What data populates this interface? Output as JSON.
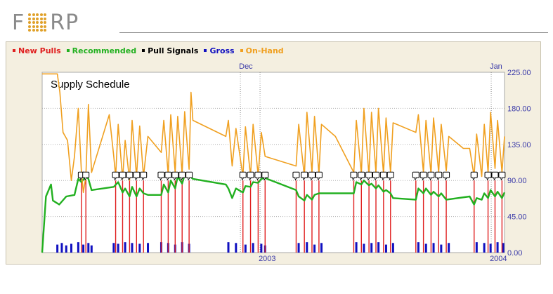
{
  "brand": {
    "logo_prefix": "F",
    "logo_suffix": "RP",
    "logo_dot_color": "#e0a12a"
  },
  "legend": [
    {
      "label": "New Pulls",
      "color": "#e02020"
    },
    {
      "label": "Recommended",
      "color": "#22b020"
    },
    {
      "label": "Pull Signals",
      "color": "#000000"
    },
    {
      "label": "Gross",
      "color": "#1010c0"
    },
    {
      "label": "On-Hand",
      "color": "#f0a020"
    }
  ],
  "chart_data": {
    "type": "line",
    "title": "Supply Schedule",
    "ylim": [
      0,
      225
    ],
    "yticks": [
      "0.00",
      "45.00",
      "90.00",
      "135.00",
      "180.00",
      "225.00"
    ],
    "top_axis_labels": [
      {
        "label": "Dec",
        "date": "2002-12-01"
      },
      {
        "label": "Jan",
        "date": "2004-01-01"
      }
    ],
    "bottom_axis_labels": [
      {
        "label": "2003",
        "date": "2003-01-01"
      },
      {
        "label": "2004",
        "date": "2004-01-01"
      }
    ],
    "xlim": [
      "2002-01-22",
      "2004-01-22"
    ],
    "grid": true,
    "legend_position": "top-left",
    "colors": {
      "on_hand": "#f0a020",
      "recommended": "#22b020",
      "new_pulls": "#e02020",
      "gross": "#1010c0",
      "pull_signals": "#000000"
    },
    "pull_signal_dates": [
      "2002-03-25",
      "2002-04-01",
      "2002-05-18",
      "2002-05-29",
      "2002-06-09",
      "2002-06-20",
      "2002-07-01",
      "2002-07-29",
      "2002-08-09",
      "2002-08-20",
      "2002-08-31",
      "2002-09-11",
      "2002-12-05",
      "2002-12-17",
      "2002-12-29",
      "2003-01-09",
      "2003-02-27",
      "2003-03-12",
      "2003-03-24",
      "2003-04-04",
      "2003-05-29",
      "2003-06-10",
      "2003-06-22",
      "2003-07-03",
      "2003-07-15",
      "2003-07-26",
      "2003-09-04",
      "2003-09-16",
      "2003-09-28",
      "2003-10-10",
      "2003-10-22",
      "2003-12-05",
      "2003-12-27",
      "2004-01-07",
      "2004-01-18"
    ],
    "series": [
      {
        "name": "On-Hand",
        "points": [
          [
            "2002-01-22",
            223
          ],
          [
            "2002-02-15",
            223
          ],
          [
            "2002-02-19",
            200
          ],
          [
            "2002-02-24",
            150
          ],
          [
            "2002-03-03",
            140
          ],
          [
            "2002-03-09",
            90
          ],
          [
            "2002-03-14",
            120
          ],
          [
            "2002-03-20",
            180
          ],
          [
            "2002-03-25",
            100
          ],
          [
            "2002-03-28",
            75
          ],
          [
            "2002-04-01",
            95
          ],
          [
            "2002-04-05",
            185
          ],
          [
            "2002-04-10",
            100
          ],
          [
            "2002-05-08",
            172
          ],
          [
            "2002-05-15",
            120
          ],
          [
            "2002-05-18",
            95
          ],
          [
            "2002-05-22",
            160
          ],
          [
            "2002-05-29",
            92
          ],
          [
            "2002-06-02",
            140
          ],
          [
            "2002-06-09",
            90
          ],
          [
            "2002-06-13",
            165
          ],
          [
            "2002-06-20",
            95
          ],
          [
            "2002-06-25",
            158
          ],
          [
            "2002-07-01",
            95
          ],
          [
            "2002-07-08",
            145
          ],
          [
            "2002-07-29",
            125
          ],
          [
            "2002-08-02",
            165
          ],
          [
            "2002-08-09",
            97
          ],
          [
            "2002-08-13",
            172
          ],
          [
            "2002-08-20",
            100
          ],
          [
            "2002-08-24",
            170
          ],
          [
            "2002-08-31",
            98
          ],
          [
            "2002-09-04",
            176
          ],
          [
            "2002-09-11",
            104
          ],
          [
            "2002-09-14",
            200
          ],
          [
            "2002-09-17",
            165
          ],
          [
            "2002-11-08",
            145
          ],
          [
            "2002-11-12",
            165
          ],
          [
            "2002-11-18",
            108
          ],
          [
            "2002-11-24",
            155
          ],
          [
            "2002-12-05",
            95
          ],
          [
            "2002-12-09",
            157
          ],
          [
            "2002-12-17",
            95
          ],
          [
            "2002-12-21",
            160
          ],
          [
            "2002-12-29",
            96
          ],
          [
            "2003-01-03",
            150
          ],
          [
            "2003-01-09",
            120
          ],
          [
            "2003-02-27",
            108
          ],
          [
            "2003-03-03",
            160
          ],
          [
            "2003-03-12",
            95
          ],
          [
            "2003-03-16",
            175
          ],
          [
            "2003-03-24",
            100
          ],
          [
            "2003-03-28",
            170
          ],
          [
            "2003-04-04",
            98
          ],
          [
            "2003-04-08",
            160
          ],
          [
            "2003-04-30",
            145
          ],
          [
            "2003-05-29",
            100
          ],
          [
            "2003-06-02",
            165
          ],
          [
            "2003-06-10",
            98
          ],
          [
            "2003-06-14",
            180
          ],
          [
            "2003-06-22",
            96
          ],
          [
            "2003-06-26",
            175
          ],
          [
            "2003-07-03",
            100
          ],
          [
            "2003-07-07",
            180
          ],
          [
            "2003-07-15",
            98
          ],
          [
            "2003-07-19",
            168
          ],
          [
            "2003-07-26",
            100
          ],
          [
            "2003-07-30",
            162
          ],
          [
            "2003-09-04",
            150
          ],
          [
            "2003-09-08",
            172
          ],
          [
            "2003-09-16",
            100
          ],
          [
            "2003-09-20",
            165
          ],
          [
            "2003-09-28",
            98
          ],
          [
            "2003-10-02",
            168
          ],
          [
            "2003-10-10",
            100
          ],
          [
            "2003-10-14",
            160
          ],
          [
            "2003-10-22",
            102
          ],
          [
            "2003-10-26",
            145
          ],
          [
            "2003-11-18",
            130
          ],
          [
            "2003-11-28",
            130
          ],
          [
            "2003-12-05",
            95
          ],
          [
            "2003-12-09",
            148
          ],
          [
            "2003-12-17",
            95
          ],
          [
            "2003-12-21",
            160
          ],
          [
            "2003-12-27",
            100
          ],
          [
            "2003-12-31",
            175
          ],
          [
            "2004-01-07",
            105
          ],
          [
            "2004-01-11",
            165
          ],
          [
            "2004-01-18",
            100
          ],
          [
            "2004-01-22",
            145
          ]
        ]
      },
      {
        "name": "Recommended",
        "points": [
          [
            "2002-01-22",
            0
          ],
          [
            "2002-01-28",
            70
          ],
          [
            "2002-02-05",
            85
          ],
          [
            "2002-02-08",
            65
          ],
          [
            "2002-02-18",
            60
          ],
          [
            "2002-03-01",
            70
          ],
          [
            "2002-03-14",
            72
          ],
          [
            "2002-03-20",
            92
          ],
          [
            "2002-03-25",
            88
          ],
          [
            "2002-04-01",
            95
          ],
          [
            "2002-04-05",
            92
          ],
          [
            "2002-04-10",
            78
          ],
          [
            "2002-05-15",
            82
          ],
          [
            "2002-05-22",
            88
          ],
          [
            "2002-05-29",
            75
          ],
          [
            "2002-06-02",
            80
          ],
          [
            "2002-06-09",
            70
          ],
          [
            "2002-06-13",
            82
          ],
          [
            "2002-06-20",
            70
          ],
          [
            "2002-06-25",
            80
          ],
          [
            "2002-07-01",
            74
          ],
          [
            "2002-07-08",
            72
          ],
          [
            "2002-07-29",
            72
          ],
          [
            "2002-08-02",
            85
          ],
          [
            "2002-08-09",
            75
          ],
          [
            "2002-08-13",
            90
          ],
          [
            "2002-08-20",
            80
          ],
          [
            "2002-08-24",
            95
          ],
          [
            "2002-08-31",
            86
          ],
          [
            "2002-09-04",
            97
          ],
          [
            "2002-09-11",
            96
          ],
          [
            "2002-09-17",
            92
          ],
          [
            "2002-11-08",
            85
          ],
          [
            "2002-11-12",
            80
          ],
          [
            "2002-11-18",
            68
          ],
          [
            "2002-11-24",
            80
          ],
          [
            "2002-12-05",
            75
          ],
          [
            "2002-12-09",
            83
          ],
          [
            "2002-12-17",
            82
          ],
          [
            "2002-12-21",
            88
          ],
          [
            "2002-12-29",
            87
          ],
          [
            "2003-01-03",
            92
          ],
          [
            "2003-01-09",
            93
          ],
          [
            "2003-02-27",
            78
          ],
          [
            "2003-03-03",
            70
          ],
          [
            "2003-03-12",
            65
          ],
          [
            "2003-03-16",
            72
          ],
          [
            "2003-03-24",
            66
          ],
          [
            "2003-03-28",
            72
          ],
          [
            "2003-04-04",
            74
          ],
          [
            "2003-04-30",
            74
          ],
          [
            "2003-05-29",
            74
          ],
          [
            "2003-06-02",
            88
          ],
          [
            "2003-06-10",
            85
          ],
          [
            "2003-06-14",
            90
          ],
          [
            "2003-06-22",
            84
          ],
          [
            "2003-06-26",
            86
          ],
          [
            "2003-07-03",
            80
          ],
          [
            "2003-07-07",
            84
          ],
          [
            "2003-07-15",
            76
          ],
          [
            "2003-07-19",
            78
          ],
          [
            "2003-07-26",
            74
          ],
          [
            "2003-07-30",
            68
          ],
          [
            "2003-09-04",
            66
          ],
          [
            "2003-09-08",
            80
          ],
          [
            "2003-09-16",
            74
          ],
          [
            "2003-09-20",
            80
          ],
          [
            "2003-09-28",
            72
          ],
          [
            "2003-10-02",
            76
          ],
          [
            "2003-10-10",
            70
          ],
          [
            "2003-10-14",
            74
          ],
          [
            "2003-10-22",
            66
          ],
          [
            "2003-11-28",
            70
          ],
          [
            "2003-12-05",
            60
          ],
          [
            "2003-12-09",
            68
          ],
          [
            "2003-12-17",
            66
          ],
          [
            "2003-12-21",
            74
          ],
          [
            "2003-12-27",
            68
          ],
          [
            "2003-12-31",
            78
          ],
          [
            "2004-01-07",
            70
          ],
          [
            "2004-01-11",
            76
          ],
          [
            "2004-01-18",
            68
          ],
          [
            "2004-01-22",
            75
          ]
        ]
      },
      {
        "name": "New Pulls",
        "value": 90,
        "dates_ref": "pull_signal_dates"
      },
      {
        "name": "Gross",
        "bars": [
          [
            "2002-02-15",
            10
          ],
          [
            "2002-02-22",
            12
          ],
          [
            "2002-03-01",
            9
          ],
          [
            "2002-03-09",
            11
          ],
          [
            "2002-03-20",
            13
          ],
          [
            "2002-03-28",
            10
          ],
          [
            "2002-04-05",
            12
          ],
          [
            "2002-04-10",
            9
          ],
          [
            "2002-05-15",
            12
          ],
          [
            "2002-05-22",
            11
          ],
          [
            "2002-06-02",
            13
          ],
          [
            "2002-06-13",
            12
          ],
          [
            "2002-06-25",
            11
          ],
          [
            "2002-07-08",
            12
          ],
          [
            "2002-07-29",
            13
          ],
          [
            "2002-08-09",
            12
          ],
          [
            "2002-08-20",
            10
          ],
          [
            "2002-08-31",
            13
          ],
          [
            "2002-09-11",
            11
          ],
          [
            "2002-11-12",
            13
          ],
          [
            "2002-11-24",
            12
          ],
          [
            "2002-12-09",
            10
          ],
          [
            "2002-12-21",
            12
          ],
          [
            "2003-01-03",
            11
          ],
          [
            "2003-01-09",
            9
          ],
          [
            "2003-03-03",
            12
          ],
          [
            "2003-03-16",
            13
          ],
          [
            "2003-03-28",
            10
          ],
          [
            "2003-04-08",
            12
          ],
          [
            "2003-06-02",
            13
          ],
          [
            "2003-06-14",
            11
          ],
          [
            "2003-06-26",
            12
          ],
          [
            "2003-07-07",
            13
          ],
          [
            "2003-07-19",
            10
          ],
          [
            "2003-07-30",
            12
          ],
          [
            "2003-09-08",
            13
          ],
          [
            "2003-09-20",
            11
          ],
          [
            "2003-10-02",
            12
          ],
          [
            "2003-10-14",
            10
          ],
          [
            "2003-10-26",
            12
          ],
          [
            "2003-12-09",
            13
          ],
          [
            "2003-12-21",
            12
          ],
          [
            "2003-12-31",
            11
          ],
          [
            "2004-01-11",
            13
          ],
          [
            "2004-01-20",
            12
          ]
        ]
      }
    ]
  }
}
